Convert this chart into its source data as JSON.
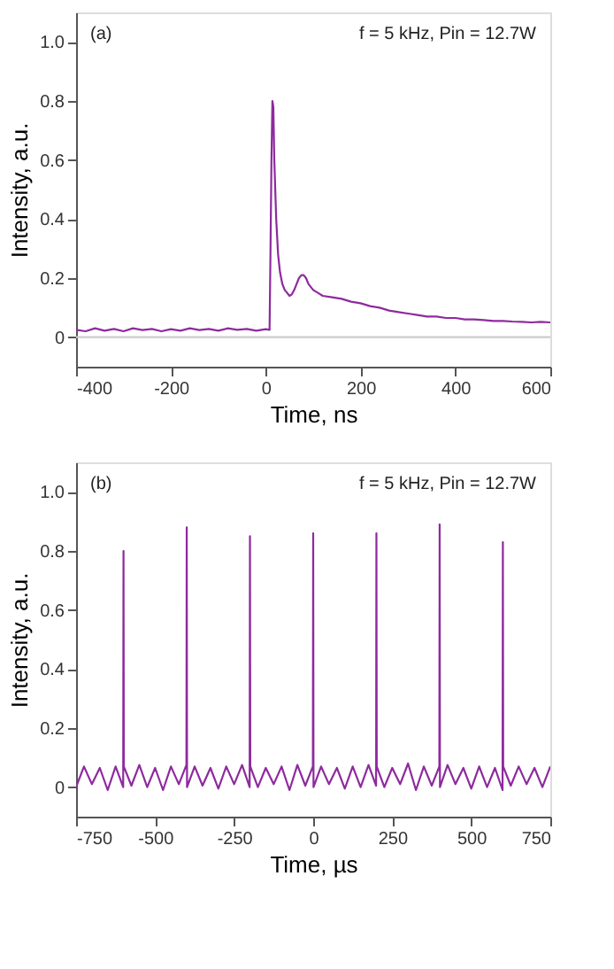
{
  "chart_data": [
    {
      "type": "line",
      "xlabel": "Time, ns",
      "ylabel": "Intensity, a.u.",
      "annotations": [
        "(a)",
        "f = 5 kHz, Pin = 12.7W"
      ],
      "x": [
        -400,
        -380,
        -360,
        -340,
        -320,
        -300,
        -280,
        -260,
        -240,
        -220,
        -200,
        -180,
        -160,
        -140,
        -120,
        -100,
        -80,
        -60,
        -40,
        -20,
        0,
        8,
        10,
        12,
        14,
        16,
        18,
        22,
        26,
        30,
        35,
        40,
        45,
        50,
        55,
        60,
        65,
        70,
        75,
        80,
        85,
        90,
        100,
        110,
        120,
        140,
        160,
        180,
        200,
        220,
        240,
        260,
        280,
        300,
        320,
        340,
        360,
        380,
        400,
        420,
        440,
        460,
        480,
        500,
        520,
        540,
        560,
        580,
        600
      ],
      "series": [
        {
          "color": "#8e2a9e",
          "values": [
            0.025,
            0.02,
            0.03,
            0.022,
            0.028,
            0.02,
            0.03,
            0.024,
            0.028,
            0.02,
            0.027,
            0.022,
            0.03,
            0.024,
            0.028,
            0.022,
            0.03,
            0.025,
            0.028,
            0.022,
            0.027,
            0.025,
            0.3,
            0.6,
            0.8,
            0.78,
            0.6,
            0.4,
            0.28,
            0.22,
            0.18,
            0.16,
            0.15,
            0.14,
            0.145,
            0.16,
            0.18,
            0.2,
            0.21,
            0.21,
            0.2,
            0.18,
            0.16,
            0.15,
            0.14,
            0.135,
            0.13,
            0.12,
            0.115,
            0.105,
            0.1,
            0.09,
            0.085,
            0.08,
            0.075,
            0.07,
            0.07,
            0.065,
            0.065,
            0.06,
            0.06,
            0.058,
            0.055,
            0.055,
            0.053,
            0.052,
            0.05,
            0.052,
            0.05
          ]
        }
      ],
      "xlim": [
        -400,
        600
      ],
      "xticks": [
        -400,
        -200,
        0,
        200,
        400,
        600
      ],
      "ylim": [
        -0.1,
        1.1
      ],
      "yticks": [
        0,
        0.2,
        0.4,
        0.6,
        0.8,
        {
          "value": 1,
          "label": "1.0"
        }
      ],
      "ref_lines": [
        {
          "axis": "y",
          "value": 0,
          "label": null,
          "color": "#cccccc"
        }
      ],
      "grid": false
    },
    {
      "type": "line",
      "xlabel": "Time, µs",
      "ylabel": "Intensity, a.u.",
      "annotations": [
        "(b)",
        "f = 5 kHz, Pin = 12.7W"
      ],
      "x": [
        -750,
        -725,
        -700,
        -675,
        -650,
        -625,
        -601,
        -600,
        -599,
        -575,
        -550,
        -525,
        -500,
        -475,
        -450,
        -425,
        -401,
        -400,
        -399,
        -375,
        -350,
        -325,
        -300,
        -275,
        -250,
        -225,
        -201,
        -200,
        -199,
        -175,
        -150,
        -125,
        -100,
        -75,
        -50,
        -25,
        -1,
        0,
        1,
        25,
        50,
        75,
        100,
        125,
        150,
        175,
        199,
        200,
        201,
        225,
        250,
        275,
        300,
        325,
        350,
        375,
        399,
        400,
        401,
        425,
        450,
        475,
        500,
        525,
        550,
        575,
        599,
        600,
        601,
        625,
        650,
        675,
        700,
        725,
        750
      ],
      "series": [
        {
          "color": "#8e2a9e",
          "values": [
            0.0,
            0.07,
            0.01,
            0.065,
            -0.01,
            0.07,
            0.0,
            0.8,
            0.07,
            0.005,
            0.075,
            0.0,
            0.065,
            -0.01,
            0.07,
            0.01,
            0.075,
            0.88,
            0.0,
            0.07,
            0.005,
            0.065,
            -0.005,
            0.07,
            0.01,
            0.075,
            0.0,
            0.85,
            0.07,
            0.0,
            0.065,
            0.01,
            0.07,
            -0.01,
            0.075,
            0.005,
            0.07,
            0.86,
            0.0,
            0.07,
            0.01,
            0.065,
            -0.005,
            0.07,
            0.0,
            0.075,
            0.005,
            0.86,
            0.07,
            0.0,
            0.065,
            0.01,
            0.08,
            -0.01,
            0.07,
            0.005,
            0.07,
            0.89,
            0.0,
            0.075,
            0.01,
            0.065,
            -0.005,
            0.07,
            0.0,
            0.065,
            -0.01,
            0.83,
            0.07,
            0.005,
            0.07,
            0.01,
            0.065,
            0.0,
            0.07
          ]
        }
      ],
      "xlim": [
        -750,
        750
      ],
      "xticks": [
        -750,
        -500,
        -250,
        0,
        250,
        500,
        750
      ],
      "ylim": [
        -0.1,
        1.1
      ],
      "yticks": [
        0,
        0.2,
        0.4,
        0.6,
        0.8,
        {
          "value": 1,
          "label": "1.0"
        }
      ],
      "grid": false
    }
  ]
}
